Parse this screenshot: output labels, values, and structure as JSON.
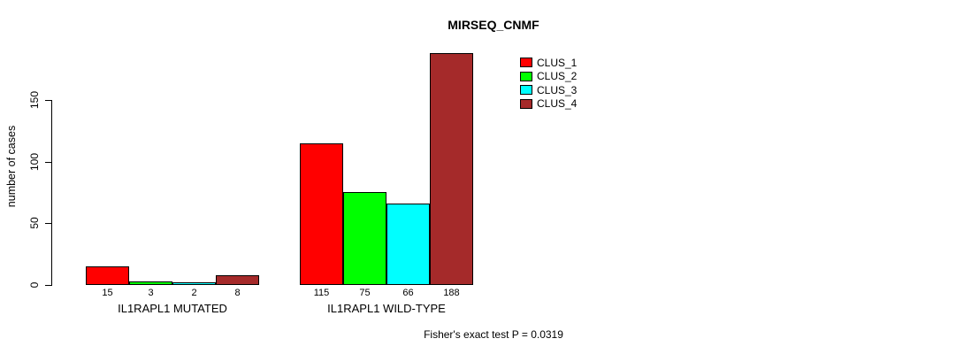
{
  "chart_data": {
    "type": "bar",
    "title": "MIRSEQ_CNMF",
    "xlabel": "",
    "ylabel": "number of cases",
    "categories": [
      "IL1RAPL1 MUTATED",
      "IL1RAPL1 WILD-TYPE"
    ],
    "series": [
      {
        "name": "CLUS_1",
        "color": "#ff0000",
        "values": [
          15,
          115
        ]
      },
      {
        "name": "CLUS_2",
        "color": "#00ff00",
        "values": [
          3,
          75
        ]
      },
      {
        "name": "CLUS_3",
        "color": "#00ffff",
        "values": [
          2,
          66
        ]
      },
      {
        "name": "CLUS_4",
        "color": "#a52a2a",
        "values": [
          8,
          188
        ]
      }
    ],
    "yticks": [
      0,
      50,
      100,
      150
    ],
    "ylim": [
      0,
      150
    ],
    "grid": false,
    "legend_position": "top-right",
    "bar_value_labels": true,
    "annotation": "Fisher's exact test P = 0.0319"
  }
}
